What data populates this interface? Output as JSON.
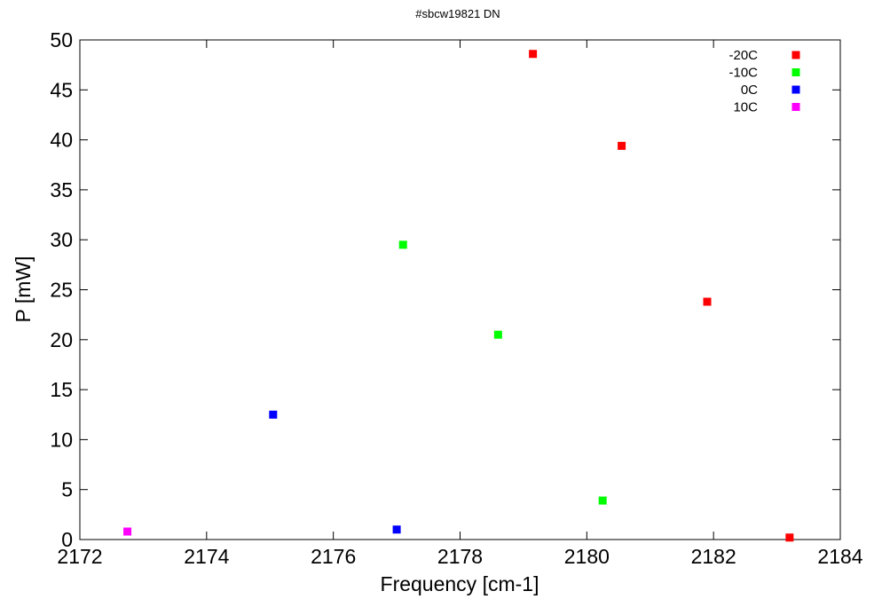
{
  "chart_data": {
    "type": "scatter",
    "title": "#sbcw19821 DN",
    "xlabel": "Frequency [cm-1]",
    "ylabel": "P [mW]",
    "xlim": [
      2172,
      2184
    ],
    "ylim": [
      0,
      50
    ],
    "xticks": [
      2172,
      2174,
      2176,
      2178,
      2180,
      2182,
      2184
    ],
    "yticks": [
      0,
      5,
      10,
      15,
      20,
      25,
      30,
      35,
      40,
      45,
      50
    ],
    "grid": false,
    "legend_position": "top-right",
    "series": [
      {
        "name": "-20C",
        "color": "#ff0000",
        "points": [
          {
            "x": 2179.15,
            "y": 48.6
          },
          {
            "x": 2180.55,
            "y": 39.4
          },
          {
            "x": 2181.9,
            "y": 23.8
          },
          {
            "x": 2183.2,
            "y": 0.2
          }
        ]
      },
      {
        "name": "-10C",
        "color": "#00ff00",
        "points": [
          {
            "x": 2177.1,
            "y": 29.5
          },
          {
            "x": 2178.6,
            "y": 20.5
          },
          {
            "x": 2180.25,
            "y": 3.9
          }
        ]
      },
      {
        "name": "0C",
        "color": "#0000ff",
        "points": [
          {
            "x": 2175.05,
            "y": 12.5
          },
          {
            "x": 2177.0,
            "y": 1.0
          }
        ]
      },
      {
        "name": "10C",
        "color": "#ff00ff",
        "points": [
          {
            "x": 2172.75,
            "y": 0.8
          }
        ]
      }
    ]
  }
}
